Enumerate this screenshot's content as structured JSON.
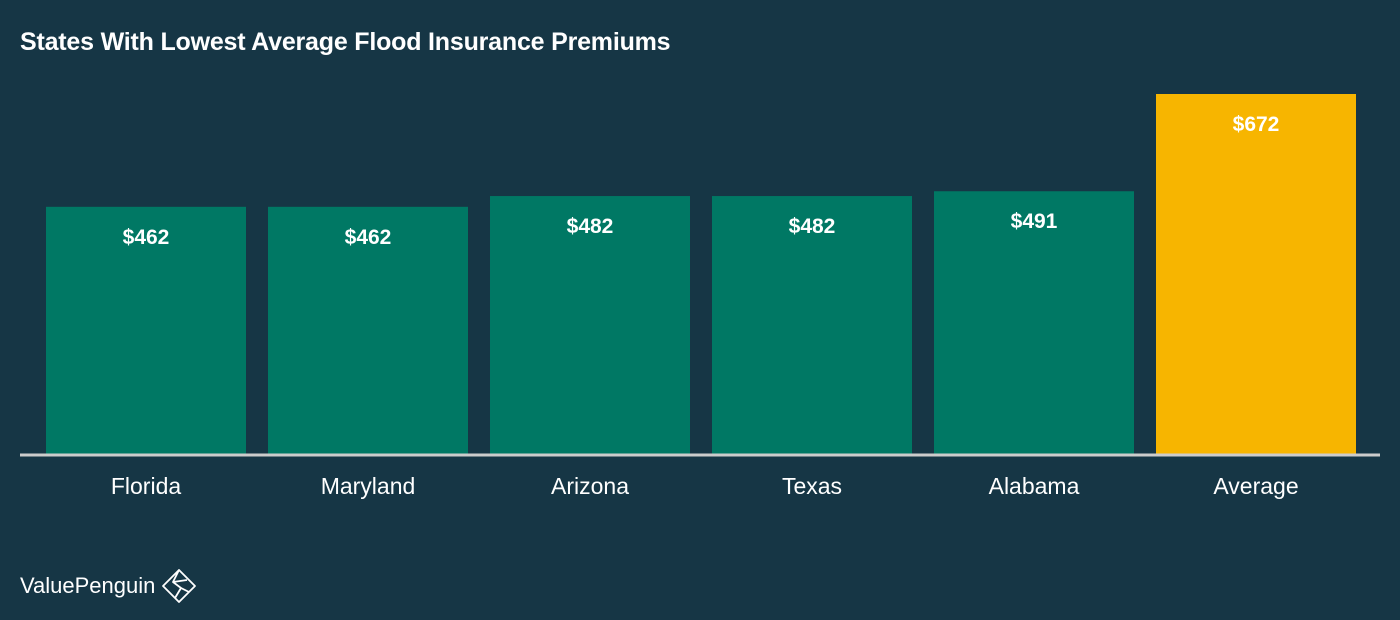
{
  "colors": {
    "background": "#163645",
    "bar": "#007864",
    "highlight": "#f7b500",
    "axis": "#cccccc",
    "text": "#ffffff"
  },
  "chart_data": {
    "type": "bar",
    "title": "States With Lowest Average Flood Insurance Premiums",
    "xlabel": "",
    "ylabel": "",
    "categories": [
      "Florida",
      "Maryland",
      "Arizona",
      "Texas",
      "Alabama",
      "Average"
    ],
    "values": [
      462,
      462,
      482,
      482,
      491,
      672
    ],
    "value_labels": [
      "$462",
      "$462",
      "$482",
      "$482",
      "$491",
      "$672"
    ],
    "highlight_category": "Average",
    "ylim": [
      0,
      672
    ],
    "grid": false,
    "legend": "none"
  },
  "brand": {
    "name": "ValuePenguin",
    "logo_icon": "penguin-diamond-icon"
  }
}
